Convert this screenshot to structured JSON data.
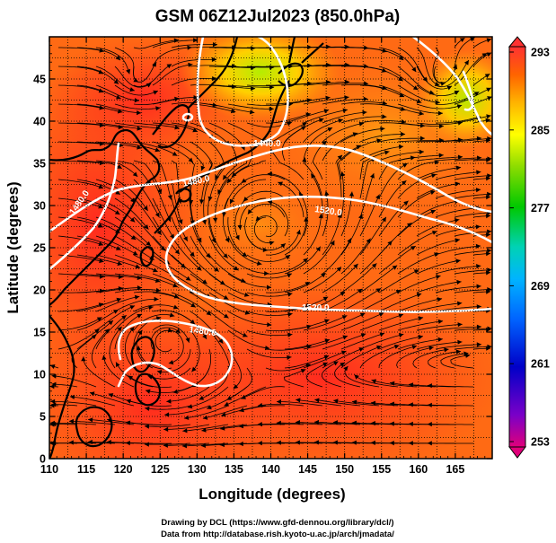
{
  "title": "GSM 06Z12Jul2023 (850.0hPa)",
  "x_axis": {
    "label": "Longitude (degrees)",
    "range": [
      110,
      170
    ],
    "ticks": [
      "110",
      "115",
      "120",
      "125",
      "130",
      "135",
      "140",
      "145",
      "150",
      "155",
      "160",
      "165"
    ]
  },
  "y_axis": {
    "label": "Latitude  (degrees)",
    "range": [
      0,
      50
    ],
    "ticks": [
      "0",
      "5",
      "10",
      "15",
      "20",
      "25",
      "30",
      "35",
      "40",
      "45"
    ]
  },
  "colorbar": {
    "labels": [
      "293",
      "285",
      "277",
      "269",
      "261",
      "253"
    ],
    "min": 253,
    "max": 293,
    "colors": [
      "#e0007a",
      "#7a00c8",
      "#0000c8",
      "#0064ff",
      "#00b4ff",
      "#00d2b4",
      "#00c800",
      "#8cdc00",
      "#ffff00",
      "#ffb400",
      "#ff6400",
      "#ff3232"
    ]
  },
  "contours": [
    "1440.0",
    "1480.0",
    "1480.0",
    "1520.0",
    "1520.0",
    "1480.0"
  ],
  "map_colors": {
    "warm": "#ff3c1e",
    "mid": "#ff6a14",
    "orange": "#ffa014",
    "yellow": "#ffd200",
    "green": "#9ee600",
    "land": "#000000",
    "contour": "#ffffff"
  },
  "credits": {
    "line1": "Drawing by DCL (https://www.gfd-dennou.org/library/dcl/)",
    "line2": "Data from http://database.rish.kyoto-u.ac.jp/arch/jmadata/"
  }
}
